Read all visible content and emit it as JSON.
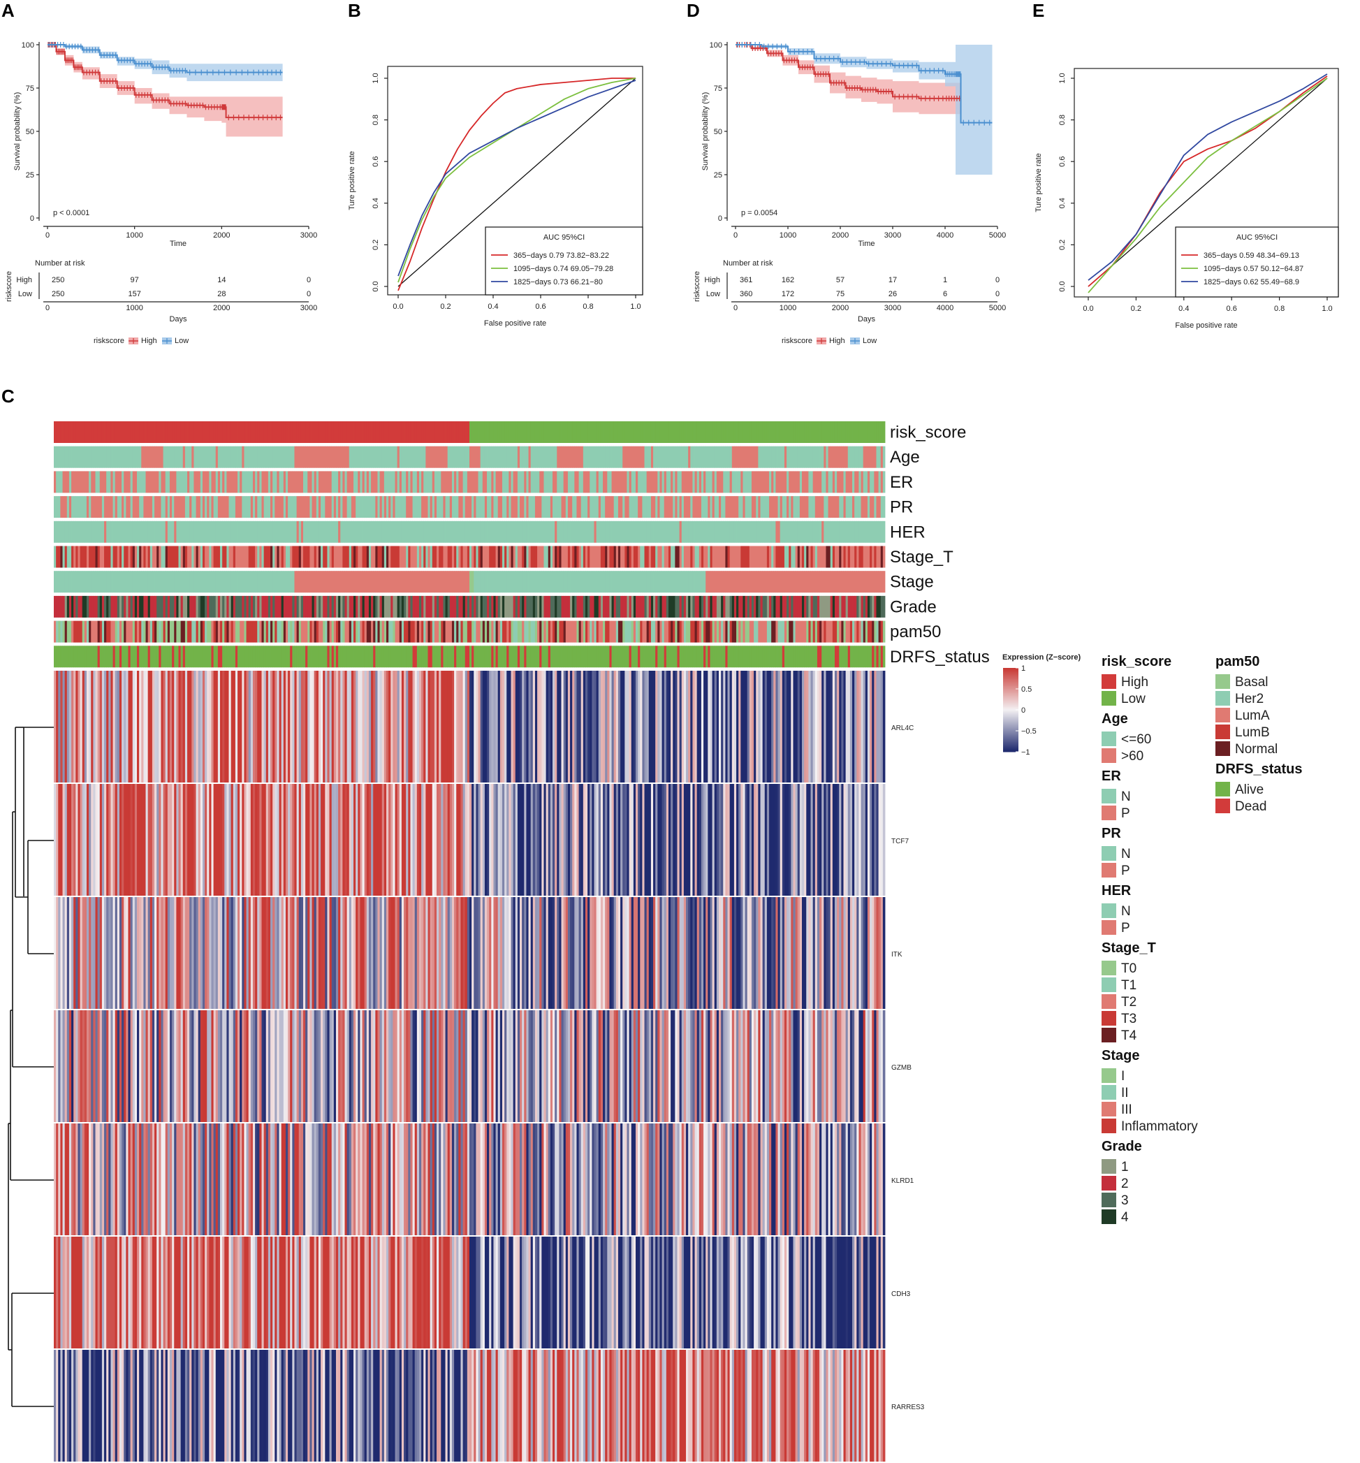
{
  "panel_labels": {
    "A": "A",
    "B": "B",
    "C": "C",
    "D": "D",
    "E": "E"
  },
  "colors": {
    "high": "#d0393a",
    "low": "#4a8fcf",
    "high_band": "#f1a9aa",
    "low_band": "#a9cbea",
    "roc365": "#d62728",
    "roc1095": "#7bbf3e",
    "roc1825": "#3048a0",
    "heat_pos": "#c93a35",
    "heat_mid": "#f4f1f3",
    "heat_neg": "#1f2a6e",
    "teal": "#8ecdb2",
    "salmon": "#e07a72",
    "risk_high": "#d23b3a",
    "risk_low": "#72b349"
  },
  "chart_data": [
    {
      "id": "A",
      "type": "line",
      "ylabel": "Survival probability (%)",
      "xlabel": "Time",
      "xlim": [
        0,
        3000
      ],
      "ylim": [
        0,
        100
      ],
      "xticks": [
        "0",
        "1000",
        "2000",
        "3000"
      ],
      "yticks": [
        "0",
        "25",
        "50",
        "75",
        "100"
      ],
      "pvalue": "p < 0.0001",
      "series": [
        {
          "name": "High",
          "color": "#d0393a",
          "x": [
            0,
            100,
            200,
            300,
            400,
            600,
            800,
            1000,
            1200,
            1400,
            1600,
            1800,
            2000,
            2050,
            2400,
            2700
          ],
          "y": [
            100,
            96,
            91,
            87,
            84,
            79,
            75,
            71,
            68,
            66,
            65,
            64,
            64,
            58,
            58,
            58
          ],
          "lo": [
            100,
            94,
            88,
            84,
            80,
            75,
            71,
            66,
            63,
            60,
            58,
            56,
            55,
            47,
            47,
            47
          ],
          "hi": [
            100,
            98,
            94,
            90,
            87,
            83,
            79,
            75,
            72,
            70,
            70,
            70,
            70,
            70,
            70,
            70
          ]
        },
        {
          "name": "Low",
          "color": "#4a8fcf",
          "x": [
            0,
            200,
            400,
            600,
            800,
            1000,
            1200,
            1400,
            1600,
            2000,
            2400,
            2700
          ],
          "y": [
            100,
            99,
            97,
            94,
            91,
            89,
            87,
            85,
            84,
            84,
            84,
            84
          ],
          "lo": [
            100,
            98,
            95,
            92,
            88,
            86,
            83,
            81,
            79,
            79,
            79,
            79
          ],
          "hi": [
            100,
            100,
            99,
            96,
            93,
            92,
            91,
            89,
            89,
            89,
            89,
            89
          ]
        }
      ],
      "risk_table": {
        "title": "Number at risk",
        "ylabel": "riskscore",
        "xlabel": "Days",
        "groups": [
          "High",
          "Low"
        ],
        "rows": [
          [
            "250",
            "97",
            "14",
            "0"
          ],
          [
            "250",
            "157",
            "28",
            "0"
          ]
        ]
      },
      "legend": {
        "title": "riskscore",
        "items": [
          "High",
          "Low"
        ]
      }
    },
    {
      "id": "B",
      "type": "line",
      "xlabel": "False positive rate",
      "ylabel": "Ture positive rate",
      "xlim": [
        0,
        1
      ],
      "ylim": [
        0,
        1
      ],
      "ticks": [
        "0.0",
        "0.2",
        "0.4",
        "0.6",
        "0.8",
        "1.0"
      ],
      "legend_title": "AUC 95%CI",
      "series": [
        {
          "name": "365−days 0.79 73.82−83.22",
          "color": "#d62728",
          "x": [
            0,
            0.05,
            0.1,
            0.15,
            0.2,
            0.25,
            0.3,
            0.35,
            0.4,
            0.45,
            0.5,
            0.6,
            0.7,
            0.8,
            0.9,
            1.0
          ],
          "y": [
            -0.02,
            0.12,
            0.28,
            0.42,
            0.55,
            0.66,
            0.75,
            0.82,
            0.88,
            0.93,
            0.95,
            0.97,
            0.98,
            0.99,
            1.0,
            1.0
          ]
        },
        {
          "name": "1095−days 0.74 69.05−79.28",
          "color": "#7bbf3e",
          "x": [
            0,
            0.05,
            0.1,
            0.15,
            0.2,
            0.3,
            0.4,
            0.5,
            0.6,
            0.7,
            0.8,
            0.9,
            1.0
          ],
          "y": [
            0.02,
            0.18,
            0.32,
            0.43,
            0.52,
            0.62,
            0.69,
            0.76,
            0.83,
            0.9,
            0.95,
            0.98,
            1.0
          ]
        },
        {
          "name": "1825−days 0.73 66.21−80",
          "color": "#3048a0",
          "x": [
            0,
            0.05,
            0.1,
            0.15,
            0.2,
            0.3,
            0.4,
            0.5,
            0.6,
            0.7,
            0.8,
            0.9,
            1.0
          ],
          "y": [
            0.05,
            0.2,
            0.34,
            0.45,
            0.54,
            0.64,
            0.7,
            0.76,
            0.81,
            0.86,
            0.91,
            0.95,
            0.99
          ]
        }
      ]
    },
    {
      "id": "D",
      "type": "line",
      "ylabel": "Survival probability (%)",
      "xlabel": "Time",
      "xlim": [
        0,
        5000
      ],
      "ylim": [
        0,
        100
      ],
      "xticks": [
        "0",
        "1000",
        "2000",
        "3000",
        "4000",
        "5000"
      ],
      "yticks": [
        "0",
        "25",
        "50",
        "75",
        "100"
      ],
      "pvalue": "p = 0.0054",
      "series": [
        {
          "name": "High",
          "color": "#d0393a",
          "x": [
            0,
            300,
            600,
            900,
            1200,
            1500,
            1800,
            2100,
            2400,
            2700,
            3000,
            3500,
            4000,
            4300
          ],
          "y": [
            100,
            98,
            95,
            91,
            87,
            83,
            78,
            75,
            74,
            73,
            70,
            69,
            69,
            69
          ],
          "lo": [
            100,
            97,
            93,
            88,
            83,
            78,
            72,
            69,
            67,
            66,
            61,
            60,
            60,
            60
          ],
          "hi": [
            100,
            99,
            97,
            94,
            91,
            88,
            84,
            82,
            81,
            80,
            79,
            78,
            78,
            78
          ]
        },
        {
          "name": "Low",
          "color": "#4a8fcf",
          "x": [
            0,
            500,
            1000,
            1500,
            2000,
            2500,
            3000,
            3500,
            4000,
            4200,
            4300,
            4900
          ],
          "y": [
            100,
            99,
            96,
            92,
            90,
            89,
            88,
            85,
            83,
            83,
            55,
            55
          ],
          "lo": [
            100,
            98,
            94,
            89,
            87,
            86,
            84,
            80,
            76,
            25,
            25,
            25
          ],
          "hi": [
            100,
            100,
            98,
            95,
            93,
            92,
            91,
            90,
            90,
            100,
            100,
            100
          ]
        }
      ],
      "risk_table": {
        "title": "Number at risk",
        "ylabel": "riskscore",
        "xlabel": "Days",
        "groups": [
          "High",
          "Low"
        ],
        "rows": [
          [
            "361",
            "162",
            "57",
            "17",
            "1",
            "0"
          ],
          [
            "360",
            "172",
            "75",
            "26",
            "6",
            "0"
          ]
        ]
      },
      "legend": {
        "title": "riskscore",
        "items": [
          "High",
          "Low"
        ]
      }
    },
    {
      "id": "E",
      "type": "line",
      "xlabel": "False positive rate",
      "ylabel": "Ture positive rate",
      "xlim": [
        0,
        1
      ],
      "ylim": [
        0,
        1
      ],
      "ticks": [
        "0.0",
        "0.2",
        "0.4",
        "0.6",
        "0.8",
        "1.0"
      ],
      "legend_title": "AUC 95%CI",
      "series": [
        {
          "name": "365−days 0.59 48.34−69.13",
          "color": "#d62728",
          "x": [
            0,
            0.1,
            0.2,
            0.3,
            0.4,
            0.5,
            0.6,
            0.7,
            0.8,
            0.9,
            1.0
          ],
          "y": [
            0.0,
            0.1,
            0.25,
            0.45,
            0.6,
            0.66,
            0.7,
            0.76,
            0.84,
            0.93,
            1.01
          ]
        },
        {
          "name": "1095−days 0.57 50.12−64.87",
          "color": "#7bbf3e",
          "x": [
            0,
            0.1,
            0.2,
            0.3,
            0.4,
            0.5,
            0.6,
            0.7,
            0.8,
            0.9,
            1.0
          ],
          "y": [
            -0.03,
            0.1,
            0.23,
            0.38,
            0.5,
            0.62,
            0.7,
            0.77,
            0.84,
            0.92,
            1.0
          ]
        },
        {
          "name": "1825−days 0.62 55.49−68.9",
          "color": "#3048a0",
          "x": [
            0,
            0.1,
            0.2,
            0.3,
            0.4,
            0.5,
            0.6,
            0.7,
            0.8,
            0.9,
            1.0
          ],
          "y": [
            0.03,
            0.12,
            0.25,
            0.44,
            0.63,
            0.73,
            0.79,
            0.84,
            0.89,
            0.95,
            1.02
          ]
        }
      ]
    },
    {
      "id": "C",
      "type": "heatmap",
      "annotation_rows": [
        "risk_score",
        "Age",
        "ER",
        "PR",
        "HER",
        "Stage_T",
        "Stage",
        "Grade",
        "pam50",
        "DRFS_status"
      ],
      "genes": [
        "ARL4C",
        "TCF7",
        "ITK",
        "GZMB",
        "KLRD1",
        "CDH3",
        "RARRES3"
      ],
      "n_samples": 500,
      "colorbar": {
        "title": "Expression (Z−score)",
        "ticks": [
          "1",
          "0.5",
          "0",
          "−0.5",
          "−1"
        ],
        "range": [
          -1,
          1
        ]
      }
    }
  ],
  "legends": {
    "col1": [
      {
        "title": "risk_score",
        "items": [
          {
            "label": "High",
            "color": "#d23b3a"
          },
          {
            "label": "Low",
            "color": "#72b349"
          }
        ]
      },
      {
        "title": "Age",
        "items": [
          {
            "label": "<=60",
            "color": "#8ecdb2"
          },
          {
            "label": ">60",
            "color": "#e07a72"
          }
        ]
      },
      {
        "title": "ER",
        "items": [
          {
            "label": "N",
            "color": "#8ecdb2"
          },
          {
            "label": "P",
            "color": "#e07a72"
          }
        ]
      },
      {
        "title": "PR",
        "items": [
          {
            "label": "N",
            "color": "#8ecdb2"
          },
          {
            "label": "P",
            "color": "#e07a72"
          }
        ]
      },
      {
        "title": "HER",
        "items": [
          {
            "label": "N",
            "color": "#8ecdb2"
          },
          {
            "label": "P",
            "color": "#e07a72"
          }
        ]
      },
      {
        "title": "Stage_T",
        "items": [
          {
            "label": "T0",
            "color": "#96c98c"
          },
          {
            "label": "T1",
            "color": "#8ecdb2"
          },
          {
            "label": "T2",
            "color": "#e07a72"
          },
          {
            "label": "T3",
            "color": "#c93a35"
          },
          {
            "label": "T4",
            "color": "#6b1f22"
          }
        ]
      },
      {
        "title": "Stage",
        "items": [
          {
            "label": "I",
            "color": "#96c98c"
          },
          {
            "label": "II",
            "color": "#8ecdb2"
          },
          {
            "label": "III",
            "color": "#e07a72"
          },
          {
            "label": "Inflammatory",
            "color": "#c93a35"
          }
        ]
      },
      {
        "title": "Grade",
        "items": [
          {
            "label": "1",
            "color": "#8f9a82"
          },
          {
            "label": "2",
            "color": "#c42f3c"
          },
          {
            "label": "3",
            "color": "#4f6b5a"
          },
          {
            "label": "4",
            "color": "#1f3b26"
          }
        ]
      }
    ],
    "col2": [
      {
        "title": "pam50",
        "items": [
          {
            "label": "Basal",
            "color": "#96c98c"
          },
          {
            "label": "Her2",
            "color": "#8ecdb2"
          },
          {
            "label": "LumA",
            "color": "#e07a72"
          },
          {
            "label": "LumB",
            "color": "#c93a35"
          },
          {
            "label": "Normal",
            "color": "#6b1f22"
          }
        ]
      },
      {
        "title": "DRFS_status",
        "items": [
          {
            "label": "Alive",
            "color": "#72b349"
          },
          {
            "label": "Dead",
            "color": "#d23b3a"
          }
        ]
      }
    ]
  }
}
